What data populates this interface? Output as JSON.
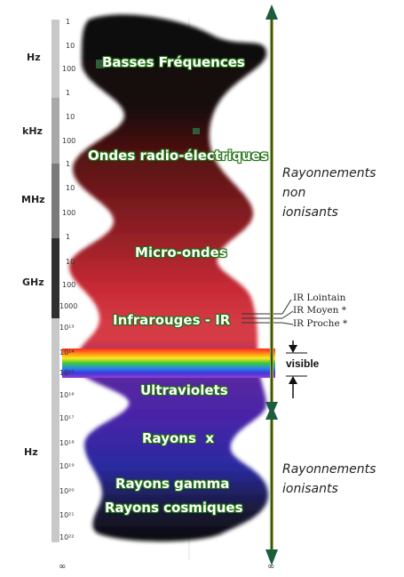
{
  "units": {
    "hz_top": "Hz",
    "khz": "kHz",
    "mhz": "MHz",
    "ghz": "GHz",
    "hz_bottom": "Hz"
  },
  "ticks": [
    "1",
    "10",
    "100",
    "1",
    "10",
    "100",
    "1",
    "10",
    "100",
    "1",
    "10",
    "100",
    "1000",
    "10¹³",
    "10¹⁴",
    "10¹⁵",
    "10¹⁶",
    "10¹⁷",
    "10¹⁸",
    "10¹⁹",
    "10²⁰",
    "10²¹",
    "10²²"
  ],
  "bottom_marks": {
    "left": "∞",
    "right": "∞"
  },
  "bands": [
    "Basses Fréquences",
    "Ondes radio-électriques",
    "Micro-ondes",
    "Infrarouges - IR",
    "Ultraviolets",
    "Rayons  x",
    "Rayons gamma",
    "Rayons cosmiques"
  ],
  "ir_subbands": [
    "IR Lointain",
    "IR Moyen *",
    "IR Proche *"
  ],
  "visible_label": "visible",
  "regions": {
    "non_ionizing": [
      "Rayonnements",
      "non",
      "ionisants"
    ],
    "ionizing": [
      "Rayonnements",
      "ionisants"
    ]
  },
  "colors": {
    "arrow": "#1d5c3c",
    "arrow_line": "#c8a832",
    "label_glow": "#2a7a1a"
  }
}
